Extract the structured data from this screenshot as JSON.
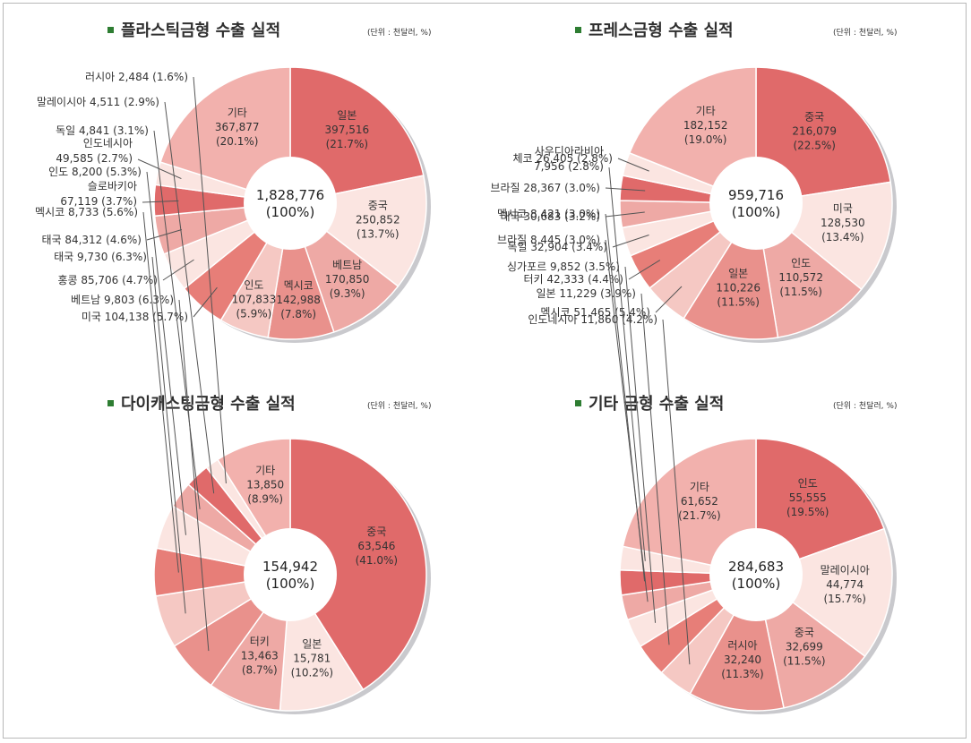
{
  "colors": {
    "palette": [
      "#e06a6a",
      "#fbe5e1",
      "#eea9a5",
      "#e9918c",
      "#e77e78",
      "#f5c8c3",
      "#f2b1ad"
    ],
    "border": "#b8b8b8",
    "title_bullet": "#2e7d32"
  },
  "chart_data": [
    {
      "type": "pie",
      "title": "플라스틱금형 수출 실적",
      "unit_note": "(단위 : 천달러, %)",
      "total": "1,828,776",
      "total_pct": "(100%)",
      "slices": [
        {
          "name": "일본",
          "value": 397516,
          "value_text": "397,516",
          "pct": "(21.7%)",
          "color": "#e06a6a"
        },
        {
          "name": "중국",
          "value": 250852,
          "value_text": "250,852",
          "pct": "(13.7%)",
          "color": "#fbe5e1"
        },
        {
          "name": "베트남",
          "value": 170850,
          "value_text": "170,850",
          "pct": "(9.3%)",
          "color": "#eea9a5"
        },
        {
          "name": "멕시코",
          "value": 142988,
          "value_text": "142,988",
          "pct": "(7.8%)",
          "color": "#e9918c"
        },
        {
          "name": "인도",
          "value": 107833,
          "value_text": "107,833",
          "pct": "(5.9%)",
          "color": "#f5c8c3"
        },
        {
          "name": "미국",
          "value": 104138,
          "value_text": "104,138",
          "pct": "(5.7%)",
          "color": "#e77e78"
        },
        {
          "name": "홍콩",
          "value": 85706,
          "value_text": "85,706",
          "pct": "(4.7%)",
          "color": "#fbe5e1"
        },
        {
          "name": "태국",
          "value": 84312,
          "value_text": "84,312",
          "pct": "(4.6%)",
          "color": "#eea9a5"
        },
        {
          "name": "슬로바키아",
          "value": 67119,
          "value_text": "67,119",
          "pct": "(3.7%)",
          "color": "#e06a6a"
        },
        {
          "name": "인도네시아",
          "value": 49585,
          "value_text": "49,585",
          "pct": "(2.7%)",
          "color": "#fbe5e1"
        },
        {
          "name": "기타",
          "value": 367877,
          "value_text": "367,877",
          "pct": "(20.1%)",
          "color": "#f2b1ad"
        }
      ]
    },
    {
      "type": "pie",
      "title": "프레스금형 수출 실적",
      "unit_note": "(단위 : 천달러, %)",
      "total": "959,716",
      "total_pct": "(100%)",
      "slices": [
        {
          "name": "중국",
          "value": 216079,
          "value_text": "216,079",
          "pct": "(22.5%)",
          "color": "#e06a6a"
        },
        {
          "name": "미국",
          "value": 128530,
          "value_text": "128,530",
          "pct": "(13.4%)",
          "color": "#fbe5e1"
        },
        {
          "name": "인도",
          "value": 110572,
          "value_text": "110,572",
          "pct": "(11.5%)",
          "color": "#eea9a5"
        },
        {
          "name": "일본",
          "value": 110226,
          "value_text": "110,226",
          "pct": "(11.5%)",
          "color": "#e9918c"
        },
        {
          "name": "멕시코",
          "value": 51465,
          "value_text": "51,465",
          "pct": "(5.4%)",
          "color": "#f5c8c3"
        },
        {
          "name": "터키",
          "value": 42333,
          "value_text": "42,333",
          "pct": "(4.4%)",
          "color": "#e77e78"
        },
        {
          "name": "독일",
          "value": 32904,
          "value_text": "32,904",
          "pct": "(3.4%)",
          "color": "#fbe5e1"
        },
        {
          "name": "태국",
          "value": 30683,
          "value_text": "30,683",
          "pct": "(3.2%)",
          "color": "#eea9a5"
        },
        {
          "name": "브라질",
          "value": 28367,
          "value_text": "28,367",
          "pct": "(3.0%)",
          "color": "#e06a6a"
        },
        {
          "name": "체코",
          "value": 26405,
          "value_text": "26,405",
          "pct": "(2.8%)",
          "color": "#fbe5e1"
        },
        {
          "name": "기타",
          "value": 182152,
          "value_text": "182,152",
          "pct": "(19.0%)",
          "color": "#f2b1ad"
        }
      ]
    },
    {
      "type": "pie",
      "title": "다이캐스팅금형 수출 실적",
      "unit_note": "(단위 : 천달러, %)",
      "total": "154,942",
      "total_pct": "(100%)",
      "slices": [
        {
          "name": "중국",
          "value": 63546,
          "value_text": "63,546",
          "pct": "(41.0%)",
          "color": "#e06a6a"
        },
        {
          "name": "일본",
          "value": 15781,
          "value_text": "15,781",
          "pct": "(10.2%)",
          "color": "#fbe5e1"
        },
        {
          "name": "터키",
          "value": 13463,
          "value_text": "13,463",
          "pct": "(8.7%)",
          "color": "#eea9a5"
        },
        {
          "name": "베트남",
          "value": 9803,
          "value_text": "9,803",
          "pct": "(6.3%)",
          "color": "#e9918c"
        },
        {
          "name": "태국",
          "value": 9730,
          "value_text": "9,730",
          "pct": "(6.3%)",
          "color": "#f5c8c3"
        },
        {
          "name": "멕시코",
          "value": 8733,
          "value_text": "8,733",
          "pct": "(5.6%)",
          "color": "#e77e78"
        },
        {
          "name": "인도",
          "value": 8200,
          "value_text": "8,200",
          "pct": "(5.3%)",
          "color": "#fbe5e1"
        },
        {
          "name": "독일",
          "value": 4841,
          "value_text": "4,841",
          "pct": "(3.1%)",
          "color": "#eea9a5"
        },
        {
          "name": "말레이시아",
          "value": 4511,
          "value_text": "4,511",
          "pct": "(2.9%)",
          "color": "#e06a6a"
        },
        {
          "name": "러시아",
          "value": 2484,
          "value_text": "2,484",
          "pct": "(1.6%)",
          "color": "#fbe5e1"
        },
        {
          "name": "기타",
          "value": 13850,
          "value_text": "13,850",
          "pct": "(8.9%)",
          "color": "#f2b1ad"
        }
      ]
    },
    {
      "type": "pie",
      "title": "기타 금형 수출 실적",
      "unit_note": "(단위 : 천달러, %)",
      "total": "284,683",
      "total_pct": "(100%)",
      "slices": [
        {
          "name": "인도",
          "value": 55555,
          "value_text": "55,555",
          "pct": "(19.5%)",
          "color": "#e06a6a"
        },
        {
          "name": "말레이시아",
          "value": 44774,
          "value_text": "44,774",
          "pct": "(15.7%)",
          "color": "#fbe5e1"
        },
        {
          "name": "중국",
          "value": 32699,
          "value_text": "32,699",
          "pct": "(11.5%)",
          "color": "#eea9a5"
        },
        {
          "name": "러시아",
          "value": 32240,
          "value_text": "32,240",
          "pct": "(11.3%)",
          "color": "#e9918c"
        },
        {
          "name": "인도네시아",
          "value": 11860,
          "value_text": "11,860",
          "pct": "(4.2%)",
          "color": "#f5c8c3"
        },
        {
          "name": "일본",
          "value": 11229,
          "value_text": "11,229",
          "pct": "(3.9%)",
          "color": "#e77e78"
        },
        {
          "name": "싱가포르",
          "value": 9852,
          "value_text": "9,852",
          "pct": "(3.5%)",
          "color": "#fbe5e1"
        },
        {
          "name": "브라질",
          "value": 8445,
          "value_text": "8,445",
          "pct": "(3.0%)",
          "color": "#eea9a5"
        },
        {
          "name": "멕시코",
          "value": 8421,
          "value_text": "8,421",
          "pct": "(3.0%)",
          "color": "#e06a6a"
        },
        {
          "name": "사우디아라비아",
          "value": 7956,
          "value_text": "7,956",
          "pct": "(2.8%)",
          "color": "#fbe5e1"
        },
        {
          "name": "기타",
          "value": 61652,
          "value_text": "61,652",
          "pct": "(21.7%)",
          "color": "#f2b1ad"
        }
      ]
    }
  ]
}
